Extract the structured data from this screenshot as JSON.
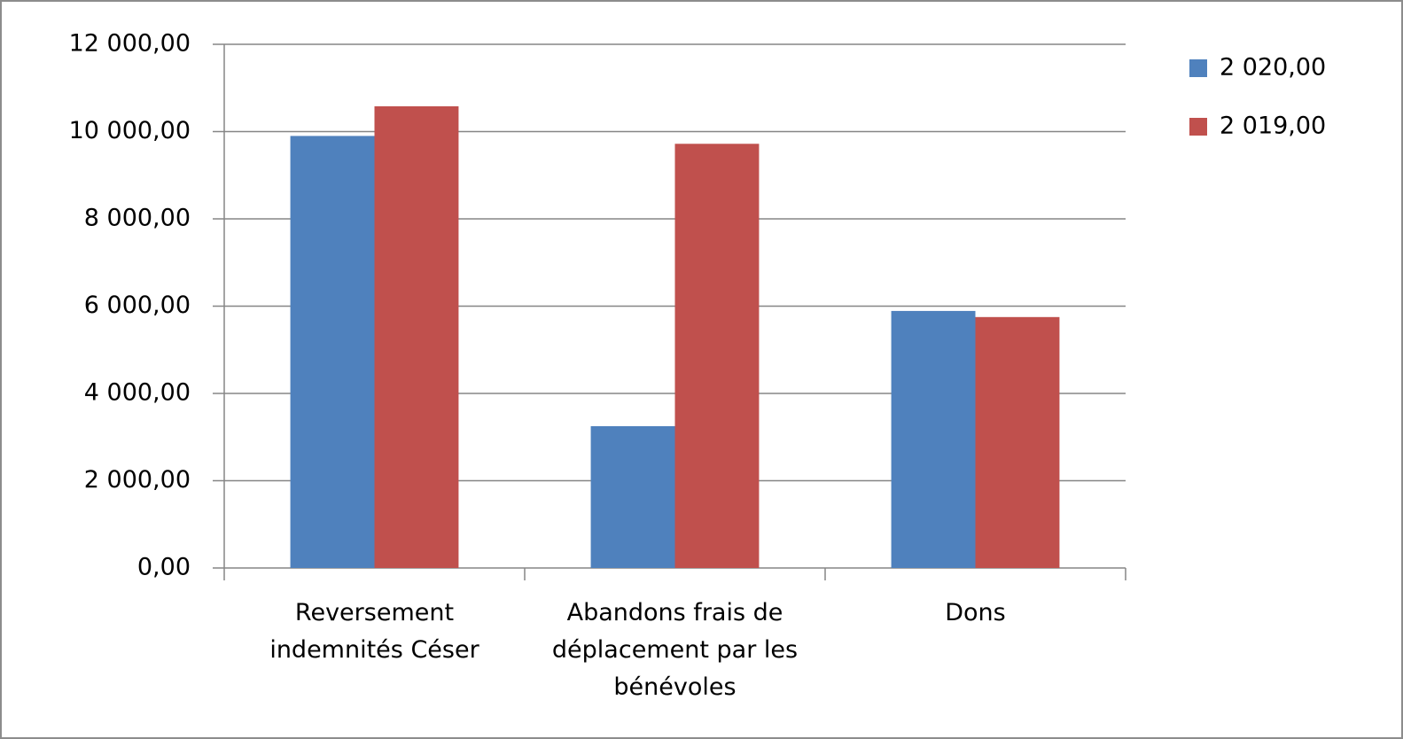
{
  "chart_data": {
    "type": "bar",
    "categories": [
      "Reversement indemnités Céser",
      "Abandons frais de déplacement par les bénévoles",
      "Dons"
    ],
    "series": [
      {
        "name": "2 020,00",
        "color": "#4f81bd",
        "values": [
          9900,
          3250,
          5890
        ]
      },
      {
        "name": "2 019,00",
        "color": "#c0504d",
        "values": [
          10580,
          9720,
          5750
        ]
      }
    ],
    "ylim": [
      0,
      12000
    ],
    "yticks": [
      {
        "value": 0,
        "label": "0,00"
      },
      {
        "value": 2000,
        "label": "2 000,00"
      },
      {
        "value": 4000,
        "label": "4 000,00"
      },
      {
        "value": 6000,
        "label": "6 000,00"
      },
      {
        "value": 8000,
        "label": "8 000,00"
      },
      {
        "value": 10000,
        "label": "10 000,00"
      },
      {
        "value": 12000,
        "label": "12 000,00"
      }
    ],
    "grid": true,
    "legend": "right"
  }
}
